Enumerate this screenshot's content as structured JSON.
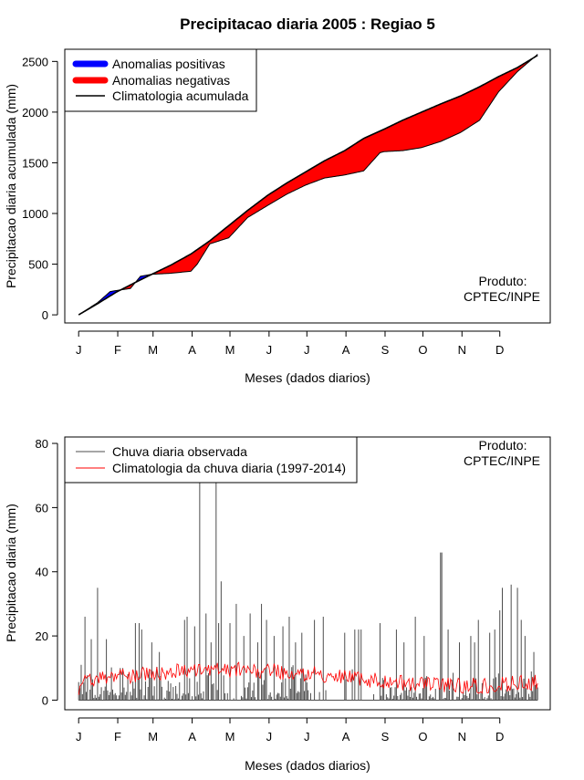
{
  "title": "Precipitacao diaria 2005 : Regiao 5",
  "credit_line1": "Produto:",
  "credit_line2": "CPTEC/INPE",
  "month_labels": [
    "J",
    "F",
    "M",
    "A",
    "M",
    "J",
    "J",
    "A",
    "S",
    "O",
    "N",
    "D"
  ],
  "chart_data": [
    {
      "type": "area",
      "ylabel": "Precipitacao diaria acumulada (mm)",
      "xlabel": "Meses (dados diarios)",
      "ylim": [
        -80,
        2620
      ],
      "yticks": [
        0,
        500,
        1000,
        1500,
        2000,
        2500
      ],
      "xlim_days": [
        -10,
        375
      ],
      "legend": [
        "Anomalias positivas",
        "Anomalias negativas",
        "Climatologia acumulada"
      ],
      "colors": {
        "positive": "#0000ff",
        "negative": "#ff0000",
        "climatology": "#000000"
      },
      "climatology_cumulative": {
        "day": [
          1,
          16,
          31,
          46,
          59,
          74,
          90,
          105,
          120,
          135,
          151,
          166,
          181,
          196,
          212,
          227,
          243,
          258,
          273,
          288,
          304,
          319,
          334,
          349,
          365
        ],
        "mm": [
          0,
          110,
          225,
          320,
          400,
          490,
          600,
          730,
          880,
          1030,
          1180,
          1300,
          1410,
          1520,
          1620,
          1740,
          1830,
          1920,
          2000,
          2080,
          2160,
          2250,
          2350,
          2440,
          2560
        ]
      },
      "observed_cumulative": {
        "day": [
          1,
          16,
          26,
          31,
          42,
          50,
          59,
          74,
          90,
          95,
          105,
          120,
          135,
          151,
          166,
          181,
          196,
          212,
          227,
          240,
          243,
          258,
          273,
          288,
          304,
          319,
          334,
          349,
          365
        ],
        "mm": [
          0,
          120,
          230,
          240,
          260,
          380,
          400,
          410,
          430,
          500,
          700,
          760,
          960,
          1080,
          1190,
          1280,
          1350,
          1380,
          1420,
          1600,
          1610,
          1620,
          1650,
          1710,
          1800,
          1920,
          2200,
          2400,
          2570
        ]
      }
    },
    {
      "type": "line",
      "ylabel": "Precipitacao diaria (mm)",
      "xlabel": "Meses (dados diarios)",
      "ylim": [
        -3,
        82
      ],
      "yticks": [
        0,
        20,
        40,
        60,
        80
      ],
      "xlim_days": [
        -10,
        375
      ],
      "legend": [
        "Chuva diaria observada",
        "Climatologia da chuva diaria (1997-2014)"
      ],
      "colors": {
        "observed": "#4d4d4d",
        "climatology": "#ff0000"
      },
      "observed_peaks": {
        "day": [
          3,
          6,
          11,
          16,
          23,
          34,
          36,
          46,
          49,
          51,
          59,
          65,
          85,
          87,
          93,
          97,
          102,
          106,
          110,
          112,
          114,
          121,
          126,
          132,
          137,
          143,
          146,
          150,
          156,
          163,
          168,
          173,
          178,
          188,
          195,
          212,
          220,
          223,
          225,
          240,
          253,
          259,
          268,
          275,
          288,
          289,
          294,
          303,
          312,
          315,
          318,
          327,
          331,
          335,
          337,
          344,
          349,
          352,
          355,
          362
        ],
        "mm": [
          11,
          26,
          19,
          35,
          19,
          10,
          10,
          24,
          24,
          22,
          18,
          15,
          25,
          26,
          23,
          80,
          27,
          18,
          80,
          24,
          37,
          24,
          30,
          20,
          27,
          18,
          30,
          25,
          20,
          23,
          26,
          18,
          21,
          25,
          26,
          21,
          22,
          22,
          22,
          24,
          22,
          18,
          26,
          20,
          46,
          46,
          22,
          18,
          20,
          18,
          25,
          21,
          22,
          28,
          35,
          36,
          35,
          25,
          20,
          15
        ]
      },
      "climatology_daily_mm_approx": 7
    }
  ]
}
